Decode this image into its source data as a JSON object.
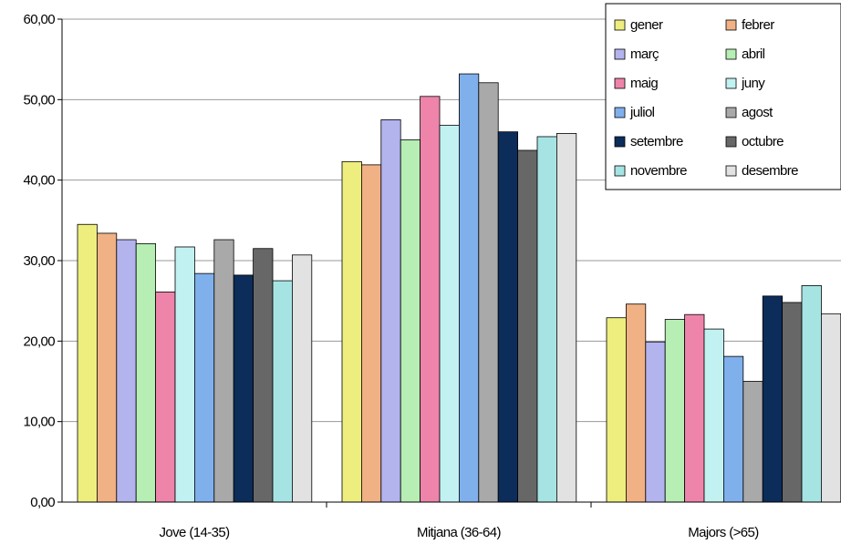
{
  "chart_data": {
    "type": "bar",
    "title": "",
    "xlabel": "",
    "ylabel": "",
    "ylim": [
      0,
      60
    ],
    "yticks": [
      "0,00",
      "10,00",
      "20,00",
      "30,00",
      "40,00",
      "50,00",
      "60,00"
    ],
    "grid": "horizontal",
    "legend_position": "top-right",
    "categories": [
      "Jove (14-35)",
      "Mitjana (36-64)",
      "Majors (>65)"
    ],
    "series": [
      {
        "name": "gener",
        "color": "#eeee7e",
        "values": [
          34.5,
          42.3,
          22.9
        ]
      },
      {
        "name": "febrer",
        "color": "#f0b185",
        "values": [
          33.4,
          41.9,
          24.6
        ]
      },
      {
        "name": "març",
        "color": "#b3b3ee",
        "values": [
          32.6,
          47.5,
          19.9
        ]
      },
      {
        "name": "abril",
        "color": "#b6eeb4",
        "values": [
          32.1,
          45.0,
          22.7
        ]
      },
      {
        "name": "maig",
        "color": "#ee84aa",
        "values": [
          26.1,
          50.4,
          23.3
        ]
      },
      {
        "name": "juny",
        "color": "#c2f1f2",
        "values": [
          31.7,
          46.8,
          21.5
        ]
      },
      {
        "name": "juliol",
        "color": "#7fb0ec",
        "values": [
          28.4,
          53.2,
          18.1
        ]
      },
      {
        "name": "agost",
        "color": "#a9a9a9",
        "values": [
          32.6,
          52.1,
          15.0
        ]
      },
      {
        "name": "setembre",
        "color": "#0c2c5a",
        "values": [
          28.2,
          46.0,
          25.6
        ]
      },
      {
        "name": "octubre",
        "color": "#676767",
        "values": [
          31.5,
          43.7,
          24.8
        ]
      },
      {
        "name": "novembre",
        "color": "#a6e4e4",
        "values": [
          27.5,
          45.4,
          26.9
        ]
      },
      {
        "name": "desembre",
        "color": "#e2e2e2",
        "values": [
          30.7,
          45.8,
          23.4
        ]
      }
    ]
  }
}
